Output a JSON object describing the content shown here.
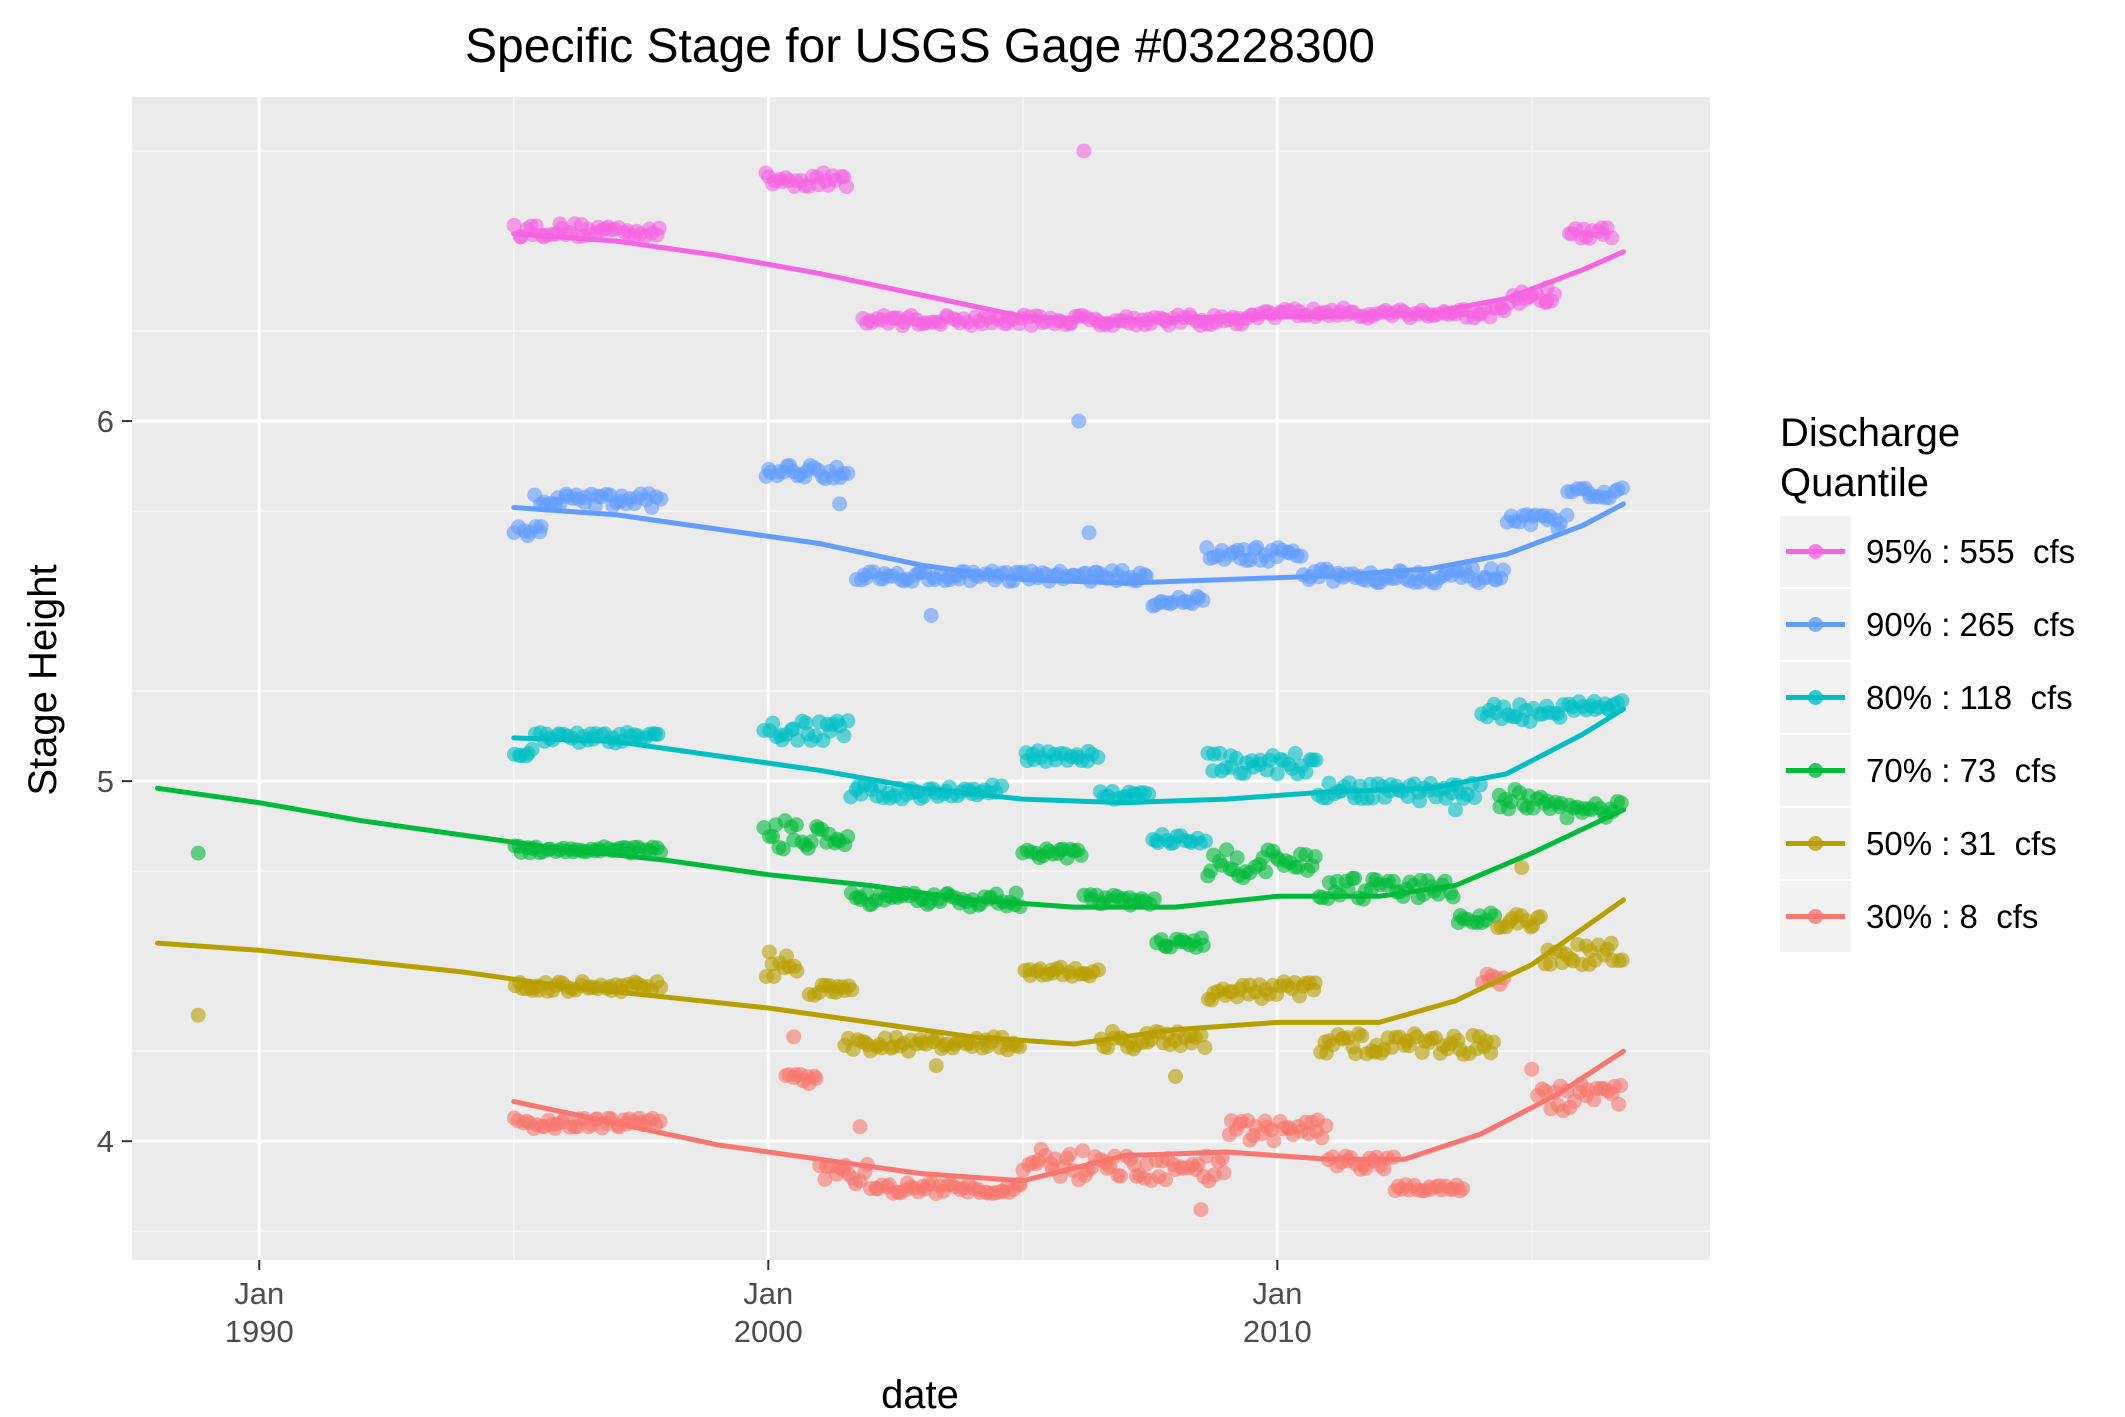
{
  "chart_data": {
    "type": "scatter",
    "title": "Specific Stage for USGS Gage #03228300",
    "xlabel": "date",
    "ylabel": "Stage Height",
    "xlim": [
      1987.5,
      2018.5
    ],
    "ylim": [
      3.67,
      6.9
    ],
    "x_ticks": [
      {
        "value": 1990,
        "month": "Jan",
        "year": "1990"
      },
      {
        "value": 2000,
        "month": "Jan",
        "year": "2000"
      },
      {
        "value": 2010,
        "month": "Jan",
        "year": "2010"
      }
    ],
    "y_ticks": [
      {
        "value": 4,
        "label": "4"
      },
      {
        "value": 5,
        "label": "5"
      },
      {
        "value": 6,
        "label": "6"
      }
    ],
    "grid": true,
    "legend": {
      "title_line1": "Discharge",
      "title_line2": "Quantile",
      "position": "right"
    },
    "series": [
      {
        "name": "95% : 555  cfs",
        "color": "#f564e3",
        "trend": [
          [
            1995.0,
            6.52
          ],
          [
            1997.0,
            6.5
          ],
          [
            1999.0,
            6.46
          ],
          [
            2001.0,
            6.41
          ],
          [
            2003.0,
            6.35
          ],
          [
            2005.0,
            6.29
          ],
          [
            2007.0,
            6.28
          ],
          [
            2009.0,
            6.29
          ],
          [
            2011.0,
            6.29
          ],
          [
            2013.0,
            6.3
          ],
          [
            2014.5,
            6.34
          ],
          [
            2016.0,
            6.42
          ],
          [
            2016.8,
            6.47
          ]
        ],
        "clusters": [
          [
            1995.0,
            1997.9,
            6.53,
            0.02
          ],
          [
            1999.9,
            2001.6,
            6.67,
            0.02
          ],
          [
            2001.8,
            2004.8,
            6.28,
            0.015
          ],
          [
            2004.8,
            2009.5,
            6.28,
            0.015
          ],
          [
            2009.5,
            2014.5,
            6.3,
            0.015
          ],
          [
            2014.5,
            2015.5,
            6.34,
            0.02
          ],
          [
            2015.7,
            2016.6,
            6.52,
            0.02
          ]
        ],
        "outliers": [
          [
            2006.2,
            6.75
          ],
          [
            2015.3,
            6.37
          ]
        ]
      },
      {
        "name": "90% : 265  cfs",
        "color": "#619cff",
        "trend": [
          [
            1995.0,
            5.76
          ],
          [
            1997.0,
            5.74
          ],
          [
            1999.0,
            5.7
          ],
          [
            2001.0,
            5.66
          ],
          [
            2003.0,
            5.6
          ],
          [
            2005.0,
            5.56
          ],
          [
            2007.0,
            5.55
          ],
          [
            2009.0,
            5.56
          ],
          [
            2011.0,
            5.57
          ],
          [
            2013.0,
            5.59
          ],
          [
            2014.5,
            5.63
          ],
          [
            2016.0,
            5.71
          ],
          [
            2016.8,
            5.77
          ]
        ],
        "clusters": [
          [
            1995.0,
            1995.6,
            5.69,
            0.02
          ],
          [
            1995.4,
            1997.9,
            5.78,
            0.02
          ],
          [
            1999.9,
            2001.6,
            5.86,
            0.02
          ],
          [
            2001.7,
            2007.5,
            5.57,
            0.015
          ],
          [
            2007.5,
            2008.6,
            5.5,
            0.015
          ],
          [
            2008.6,
            2010.5,
            5.63,
            0.02
          ],
          [
            2010.5,
            2014.5,
            5.57,
            0.02
          ],
          [
            2014.5,
            2015.7,
            5.72,
            0.02
          ],
          [
            2015.7,
            2016.8,
            5.8,
            0.015
          ]
        ],
        "outliers": [
          [
            2003.2,
            5.46
          ],
          [
            2006.1,
            6.0
          ],
          [
            2006.3,
            5.69
          ],
          [
            2001.4,
            5.77
          ]
        ]
      },
      {
        "name": "80% : 118  cfs",
        "color": "#00bfc4",
        "trend": [
          [
            1995.0,
            5.12
          ],
          [
            1997.0,
            5.11
          ],
          [
            1999.0,
            5.07
          ],
          [
            2001.0,
            5.03
          ],
          [
            2003.0,
            4.98
          ],
          [
            2005.0,
            4.95
          ],
          [
            2007.0,
            4.94
          ],
          [
            2009.0,
            4.95
          ],
          [
            2011.0,
            4.97
          ],
          [
            2013.0,
            4.98
          ],
          [
            2014.5,
            5.02
          ],
          [
            2016.0,
            5.13
          ],
          [
            2016.8,
            5.2
          ]
        ],
        "clusters": [
          [
            1995.0,
            1995.4,
            5.09,
            0.02
          ],
          [
            1995.4,
            1997.9,
            5.12,
            0.015
          ],
          [
            1999.9,
            2001.6,
            5.14,
            0.03
          ],
          [
            2001.6,
            2004.6,
            4.97,
            0.02
          ],
          [
            2005.0,
            2006.5,
            5.07,
            0.015
          ],
          [
            2006.5,
            2007.5,
            4.96,
            0.015
          ],
          [
            2007.5,
            2008.6,
            4.84,
            0.015
          ],
          [
            2008.6,
            2010.8,
            5.05,
            0.03
          ],
          [
            2010.8,
            2014.0,
            4.97,
            0.025
          ],
          [
            2014.0,
            2015.6,
            5.19,
            0.03
          ],
          [
            2015.6,
            2016.8,
            5.21,
            0.015
          ]
        ],
        "outliers": [
          [
            2013.5,
            4.92
          ]
        ]
      },
      {
        "name": "70% : 73  cfs",
        "color": "#00ba38",
        "trend": [
          [
            1988.0,
            4.98
          ],
          [
            1990.0,
            4.94
          ],
          [
            1992.0,
            4.89
          ],
          [
            1994.0,
            4.85
          ],
          [
            1996.0,
            4.81
          ],
          [
            1998.0,
            4.78
          ],
          [
            2000.0,
            4.74
          ],
          [
            2002.0,
            4.71
          ],
          [
            2004.0,
            4.67
          ],
          [
            2006.0,
            4.65
          ],
          [
            2008.0,
            4.65
          ],
          [
            2010.0,
            4.68
          ],
          [
            2012.0,
            4.68
          ],
          [
            2013.5,
            4.71
          ],
          [
            2015.0,
            4.8
          ],
          [
            2016.8,
            4.92
          ]
        ],
        "clusters": [
          [
            1995.0,
            1997.9,
            4.81,
            0.01
          ],
          [
            1999.9,
            2001.6,
            4.85,
            0.04
          ],
          [
            2001.6,
            2005.0,
            4.67,
            0.02
          ],
          [
            2005.0,
            2006.2,
            4.8,
            0.015
          ],
          [
            2006.2,
            2007.6,
            4.67,
            0.015
          ],
          [
            2007.6,
            2008.6,
            4.55,
            0.015
          ],
          [
            2008.6,
            2010.8,
            4.77,
            0.04
          ],
          [
            2010.8,
            2013.5,
            4.7,
            0.03
          ],
          [
            2013.5,
            2014.3,
            4.62,
            0.015
          ],
          [
            2014.3,
            2015.2,
            4.95,
            0.03
          ],
          [
            2015.2,
            2016.8,
            4.92,
            0.025
          ]
        ],
        "outliers": [
          [
            1988.8,
            4.8
          ]
        ]
      },
      {
        "name": "50% : 31  cfs",
        "color": "#b79f00",
        "trend": [
          [
            1988.0,
            4.55
          ],
          [
            1990.0,
            4.53
          ],
          [
            1992.0,
            4.5
          ],
          [
            1994.0,
            4.47
          ],
          [
            1996.0,
            4.43
          ],
          [
            1998.0,
            4.4
          ],
          [
            2000.0,
            4.37
          ],
          [
            2002.0,
            4.33
          ],
          [
            2004.0,
            4.29
          ],
          [
            2006.0,
            4.27
          ],
          [
            2008.0,
            4.31
          ],
          [
            2010.0,
            4.33
          ],
          [
            2012.0,
            4.33
          ],
          [
            2013.5,
            4.39
          ],
          [
            2015.0,
            4.49
          ],
          [
            2016.8,
            4.67
          ]
        ],
        "clusters": [
          [
            1995.0,
            1997.9,
            4.43,
            0.015
          ],
          [
            1999.9,
            2000.6,
            4.49,
            0.04
          ],
          [
            2000.8,
            2001.7,
            4.42,
            0.015
          ],
          [
            2001.5,
            2005.0,
            4.27,
            0.02
          ],
          [
            2005.0,
            2006.5,
            4.47,
            0.015
          ],
          [
            2006.5,
            2008.6,
            4.28,
            0.025
          ],
          [
            2008.6,
            2010.8,
            4.42,
            0.03
          ],
          [
            2010.8,
            2014.3,
            4.27,
            0.03
          ],
          [
            2014.3,
            2015.2,
            4.61,
            0.02
          ],
          [
            2015.2,
            2016.8,
            4.52,
            0.03
          ]
        ],
        "outliers": [
          [
            1988.8,
            4.35
          ],
          [
            2003.3,
            4.21
          ],
          [
            2008.0,
            4.18
          ],
          [
            2014.8,
            4.76
          ]
        ]
      },
      {
        "name": "30% : 8  cfs",
        "color": "#f8766d",
        "trend": [
          [
            1995.0,
            4.11
          ],
          [
            1997.0,
            4.05
          ],
          [
            1999.0,
            3.99
          ],
          [
            2001.0,
            3.95
          ],
          [
            2003.0,
            3.91
          ],
          [
            2005.0,
            3.89
          ],
          [
            2007.0,
            3.96
          ],
          [
            2009.0,
            3.97
          ],
          [
            2011.0,
            3.95
          ],
          [
            2012.5,
            3.95
          ],
          [
            2014.0,
            4.02
          ],
          [
            2015.5,
            4.13
          ],
          [
            2016.8,
            4.25
          ]
        ],
        "clusters": [
          [
            1995.0,
            1997.9,
            4.05,
            0.015
          ],
          [
            2000.3,
            2001.0,
            4.17,
            0.02
          ],
          [
            2001.0,
            2002.0,
            3.91,
            0.03
          ],
          [
            2002.0,
            2005.0,
            3.87,
            0.015
          ],
          [
            2005.0,
            2006.2,
            3.93,
            0.05
          ],
          [
            2006.2,
            2009.0,
            3.92,
            0.04
          ],
          [
            2009.0,
            2011.0,
            4.03,
            0.03
          ],
          [
            2011.0,
            2012.3,
            3.94,
            0.02
          ],
          [
            2012.3,
            2013.7,
            3.87,
            0.01
          ],
          [
            2014.0,
            2014.5,
            4.45,
            0.015
          ],
          [
            2015.1,
            2016.8,
            4.12,
            0.04
          ]
        ],
        "outliers": [
          [
            2000.5,
            4.29
          ],
          [
            2008.5,
            3.81
          ],
          [
            2015.0,
            4.2
          ],
          [
            2001.8,
            4.04
          ]
        ]
      }
    ]
  }
}
